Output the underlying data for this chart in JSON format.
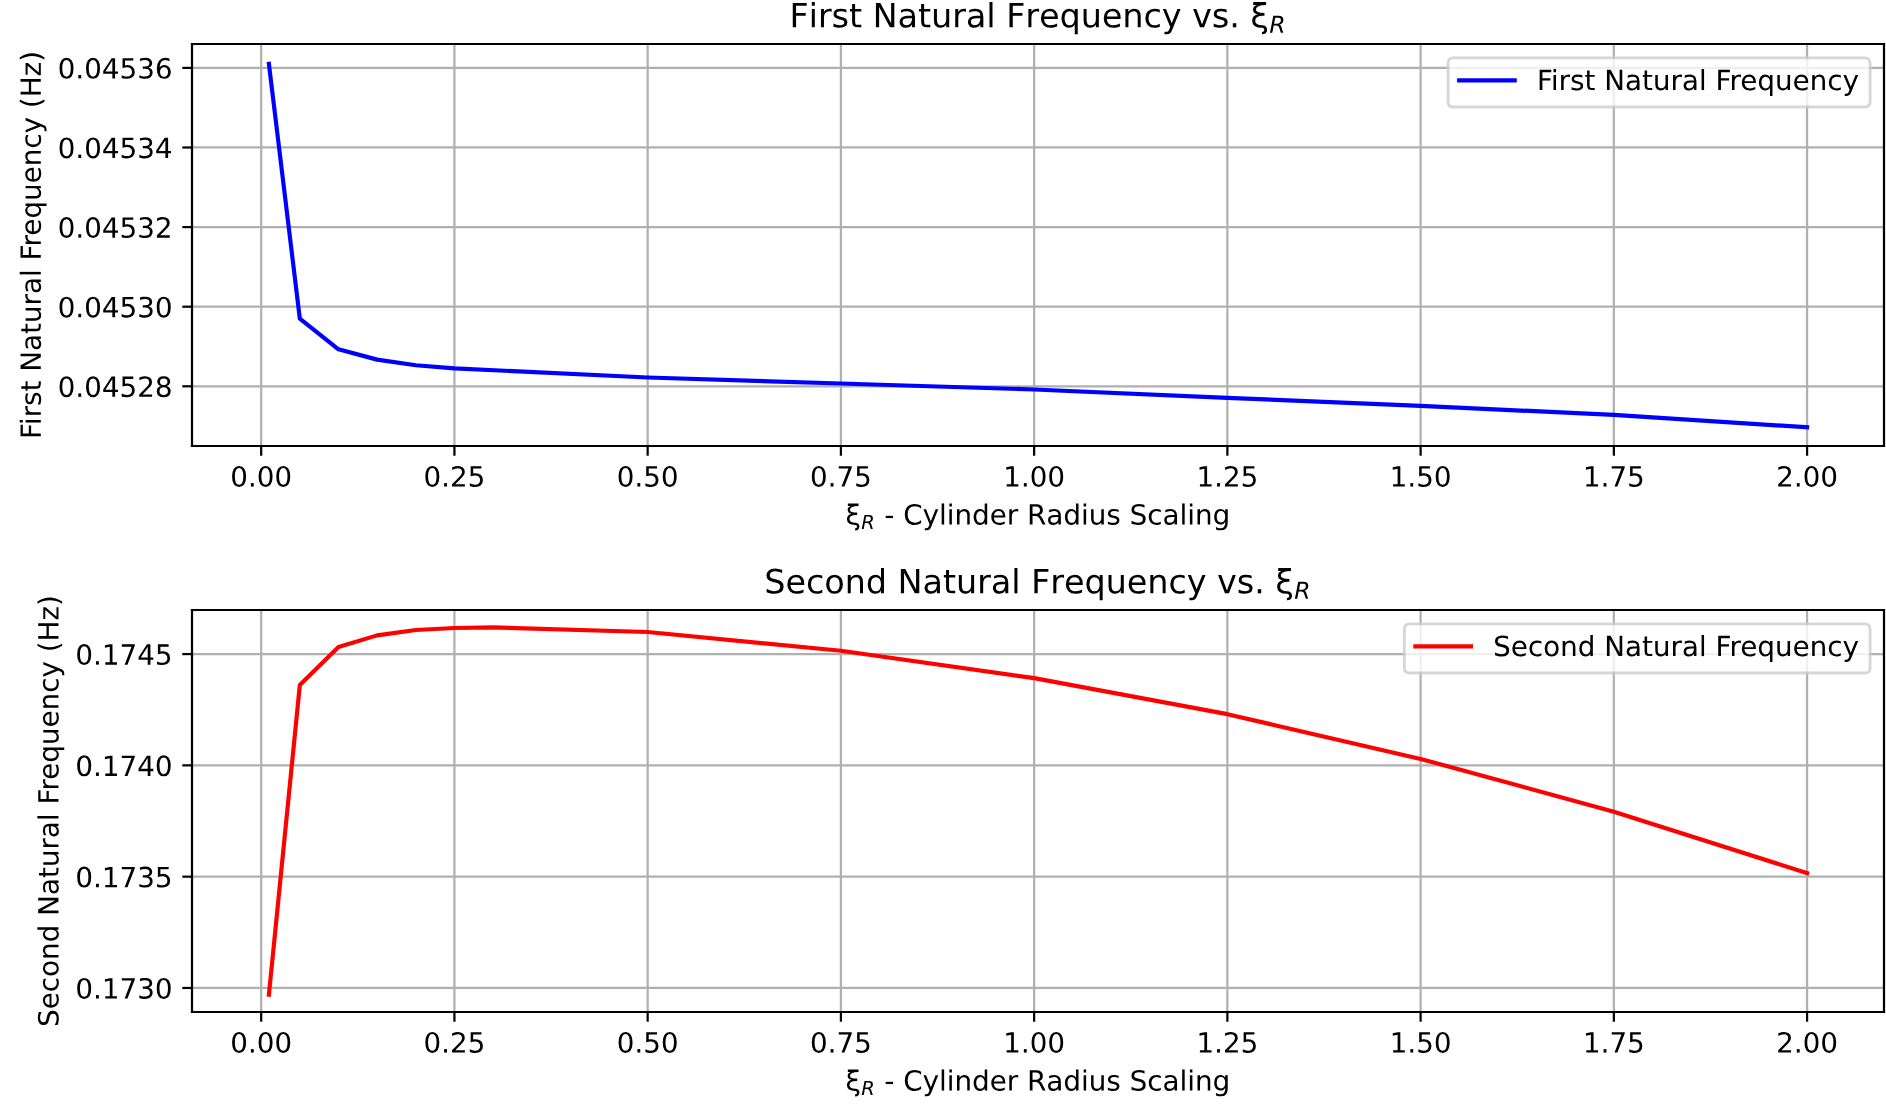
{
  "chart_data": [
    {
      "type": "line",
      "title": "First Natural Frequency vs. ξ$_{R}$",
      "xlabel": "ξ$_{R}$ - Cylinder Radius Scaling",
      "ylabel": "First Natural Frequency (Hz)",
      "x": [
        0.01,
        0.05,
        0.1,
        0.15,
        0.2,
        0.25,
        0.5,
        0.75,
        1.0,
        1.25,
        1.5,
        1.75,
        2.0
      ],
      "series": [
        {
          "name": "First Natural Frequency",
          "color": "#0000ff",
          "values": [
            0.045361,
            0.045297,
            0.0452893,
            0.0452867,
            0.0452853,
            0.0452845,
            0.0452822,
            0.0452807,
            0.0452792,
            0.0452771,
            0.0452751,
            0.0452728,
            0.0452697
          ]
        }
      ],
      "xlim": [
        -0.0895,
        2.0995
      ],
      "xticks": [
        {
          "value": 0,
          "label": "0.00"
        },
        {
          "value": 0.25,
          "label": "0.25"
        },
        {
          "value": 0.5,
          "label": "0.50"
        },
        {
          "value": 0.75,
          "label": "0.75"
        },
        {
          "value": 1,
          "label": "1.00"
        },
        {
          "value": 1.25,
          "label": "1.25"
        },
        {
          "value": 1.5,
          "label": "1.50"
        },
        {
          "value": 1.75,
          "label": "1.75"
        },
        {
          "value": 2,
          "label": "2.00"
        }
      ],
      "ylim": [
        0.045265,
        0.045366
      ],
      "yticks": [
        0.04528,
        {
          "value": 0.0453,
          "label": "0.04530"
        },
        0.04532,
        0.04534,
        0.04536
      ],
      "grid": true,
      "legend": "top right",
      "marker": "none",
      "line_style": "solid"
    },
    {
      "type": "line",
      "title": "Second Natural Frequency vs. ξ$_{R}$",
      "xlabel": "ξ$_{R}$ - Cylinder Radius Scaling",
      "ylabel": "Second Natural Frequency (Hz)",
      "x": [
        0.01,
        0.05,
        0.1,
        0.15,
        0.2,
        0.25,
        0.3,
        0.5,
        0.75,
        1.0,
        1.25,
        1.5,
        1.75,
        2.0
      ],
      "series": [
        {
          "name": "Second Natural Frequency",
          "color": "#ff0000",
          "values": [
            0.17297,
            0.174361,
            0.174532,
            0.174584,
            0.174608,
            0.174617,
            0.17462,
            0.174599,
            0.174515,
            0.174392,
            0.17423,
            0.174029,
            0.173792,
            0.173516
          ]
        }
      ],
      "xlim": [
        -0.0895,
        2.0995
      ],
      "xticks": [
        {
          "value": 0,
          "label": "0.00"
        },
        {
          "value": 0.25,
          "label": "0.25"
        },
        {
          "value": 0.5,
          "label": "0.50"
        },
        {
          "value": 0.75,
          "label": "0.75"
        },
        {
          "value": 1,
          "label": "1.00"
        },
        {
          "value": 1.25,
          "label": "1.25"
        },
        {
          "value": 1.5,
          "label": "1.50"
        },
        {
          "value": 1.75,
          "label": "1.75"
        },
        {
          "value": 2,
          "label": "2.00"
        }
      ],
      "ylim": [
        0.172892,
        0.174698
      ],
      "yticks": [
        {
          "value": 0.173,
          "label": "0.1730"
        },
        0.1735,
        {
          "value": 0.174,
          "label": "0.1740"
        },
        0.1745
      ],
      "grid": true,
      "legend": "top right",
      "marker": "none",
      "line_style": "solid"
    }
  ]
}
